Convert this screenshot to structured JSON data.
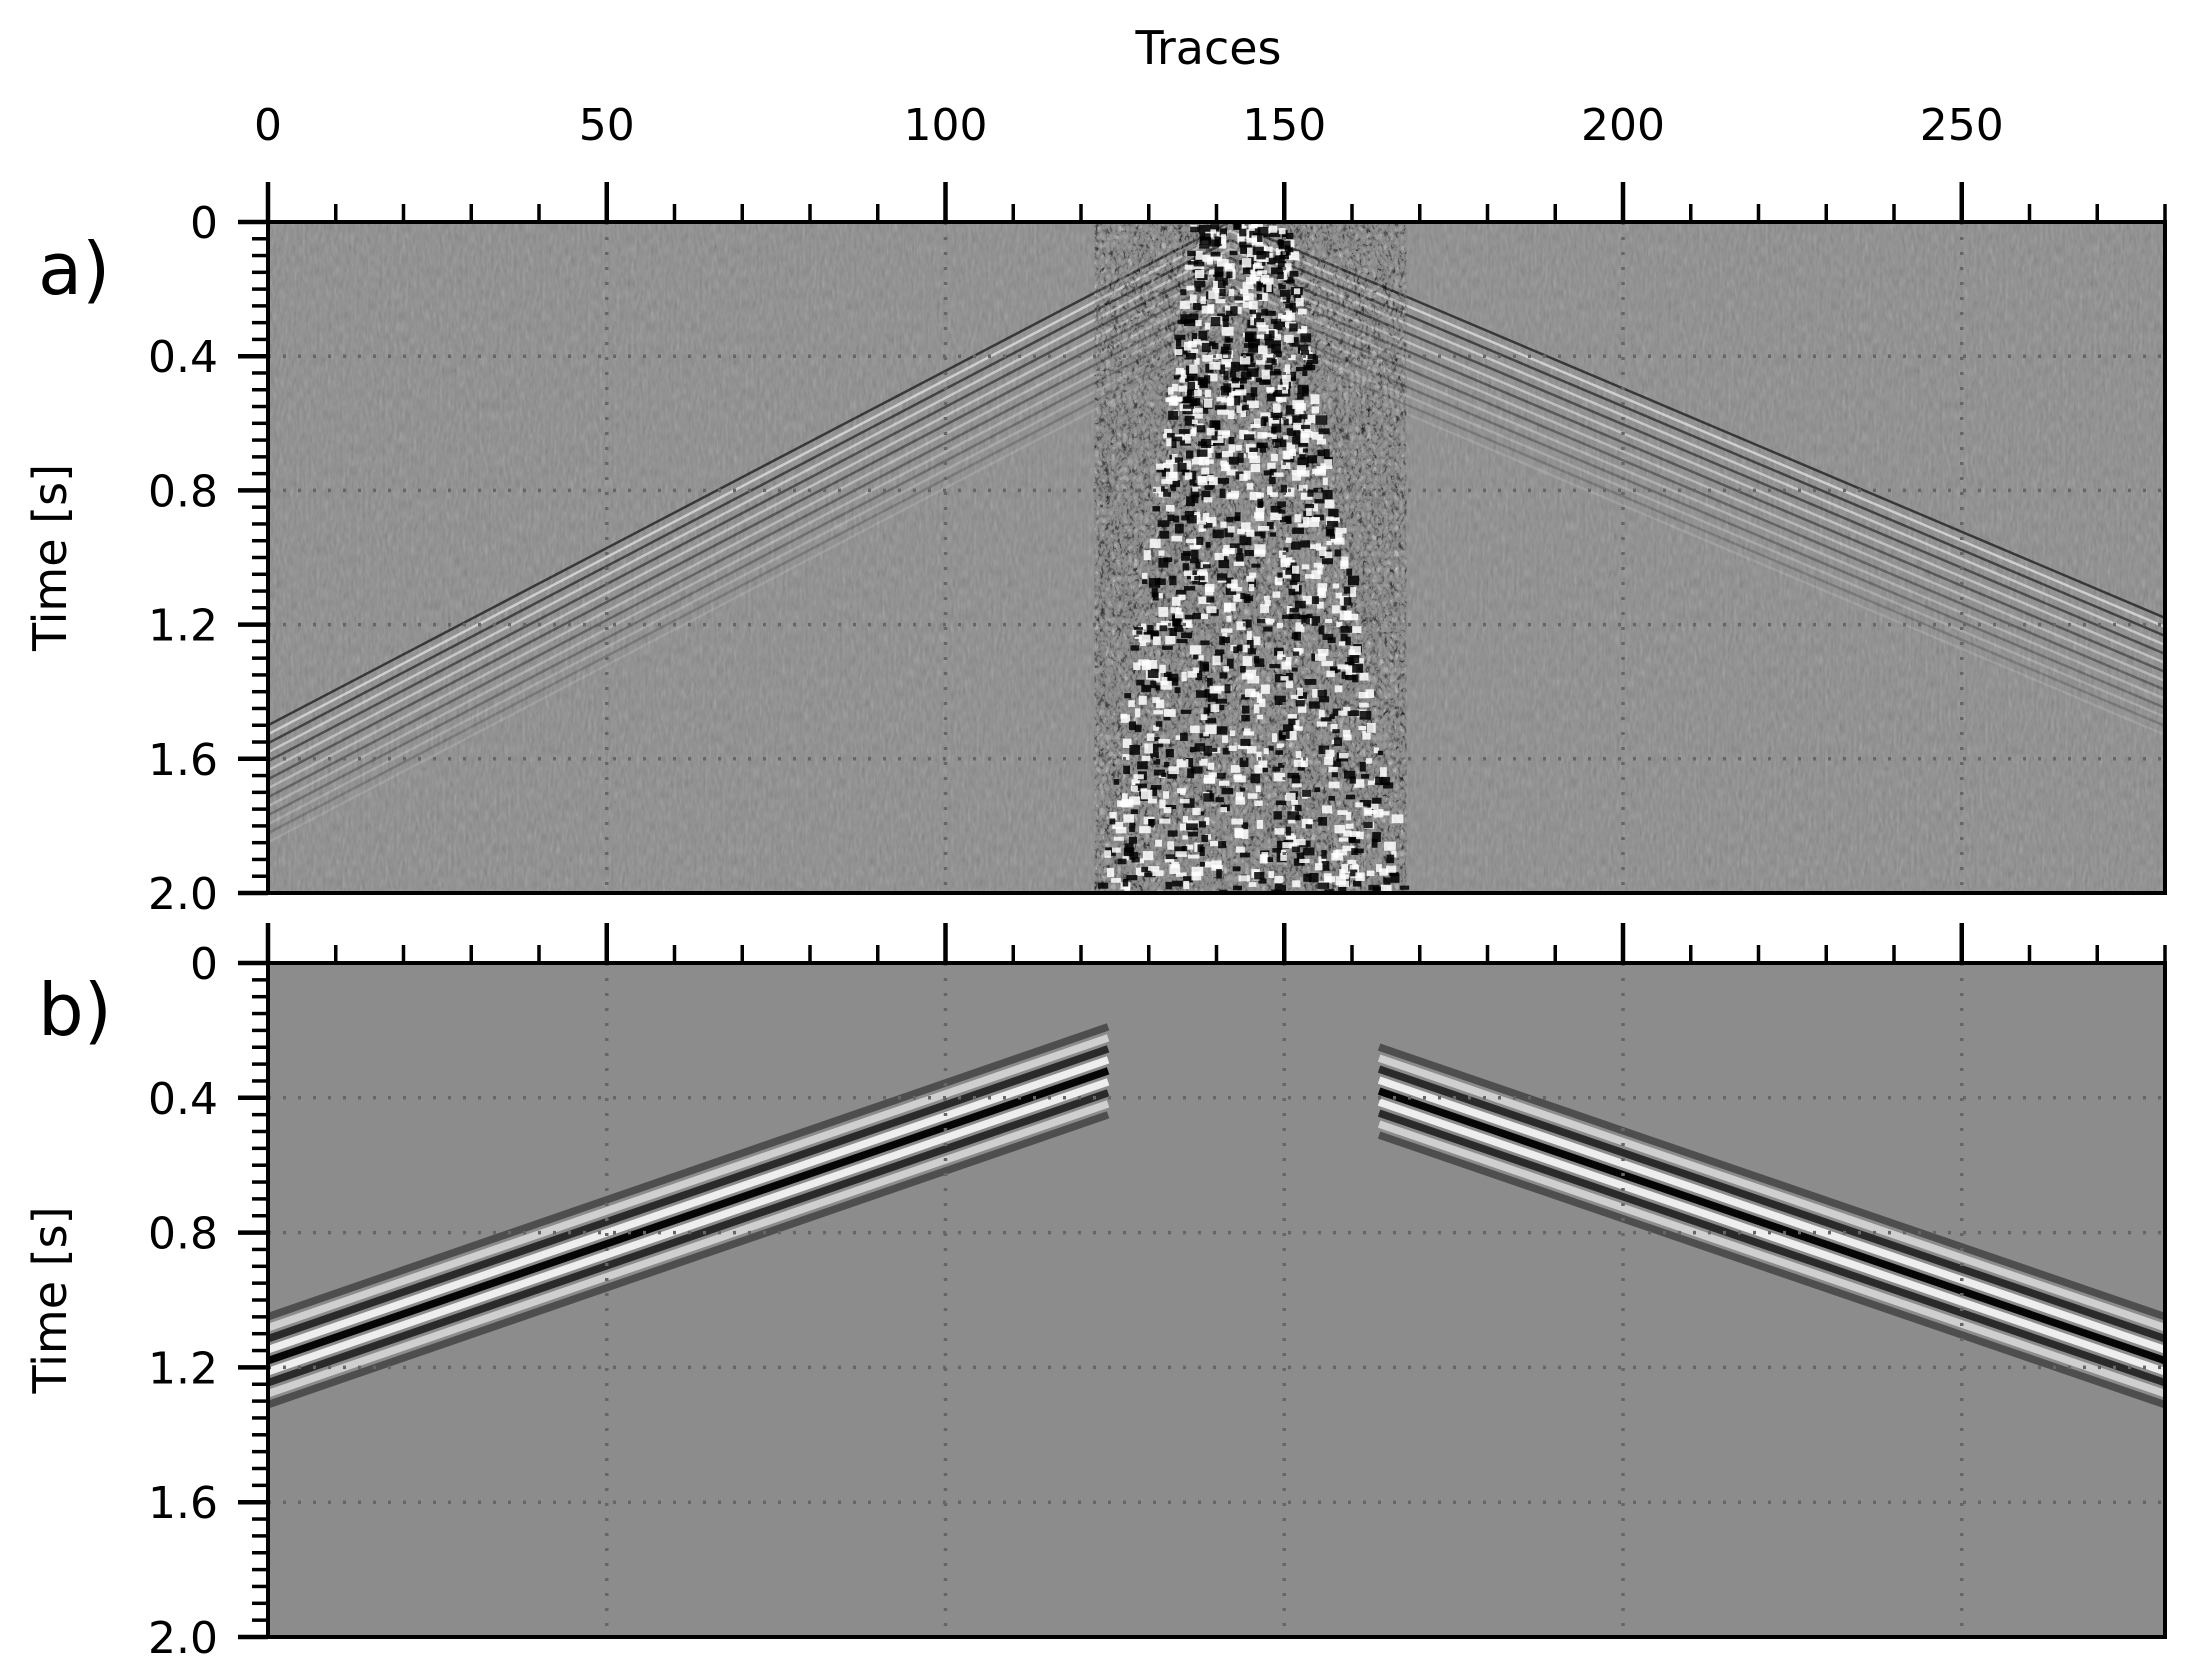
{
  "chart_data": [
    {
      "type": "heatmap",
      "panel_label": "a)",
      "xlabel": "Traces",
      "ylabel": "Time [s]",
      "xlim": [
        0,
        280
      ],
      "ylim": [
        0,
        2.0
      ],
      "y_inverted": true,
      "x_tick_positions": "top",
      "xticks": [
        0,
        50,
        100,
        150,
        200,
        250
      ],
      "xtick_labels": [
        "0",
        "50",
        "100",
        "150",
        "200",
        "250"
      ],
      "yticks": [
        0,
        0.4,
        0.8,
        1.2,
        1.6,
        2.0
      ],
      "ytick_labels": [
        "0",
        "0.4",
        "0.8",
        "1.2",
        "1.6",
        "2.0"
      ],
      "grid": true,
      "colormap": "gray",
      "background_color": "#8c8c8c",
      "features": {
        "first_break_apex": {
          "trace": 142,
          "time": 0.0
        },
        "first_break_left_end": {
          "trace": 0,
          "time": 1.5
        },
        "first_break_right_end": {
          "trace": 280,
          "time": 1.18
        },
        "noise_cone_top": [
          [
            136,
            0.0
          ],
          [
            150,
            0.0
          ]
        ],
        "noise_cone_bottom": [
          [
            122,
            2.0
          ],
          [
            168,
            2.0
          ]
        ]
      }
    },
    {
      "type": "heatmap",
      "panel_label": "b)",
      "xlabel": "",
      "ylabel": "Time [s]",
      "xlim": [
        0,
        280
      ],
      "ylim": [
        0,
        2.0
      ],
      "y_inverted": true,
      "xticks": [
        0,
        50,
        100,
        150,
        200,
        250
      ],
      "yticks": [
        0,
        0.4,
        0.8,
        1.2,
        1.6,
        2.0
      ],
      "ytick_labels": [
        "0",
        "0.4",
        "0.8",
        "1.2",
        "1.6",
        "2.0"
      ],
      "grid": true,
      "colormap": "gray",
      "background_color": "#8c8c8c",
      "features": {
        "left_event": {
          "trace_start": 0,
          "trace_end": 124,
          "time_center_start": 1.18,
          "time_center_end": 0.32
        },
        "right_event": {
          "trace_start": 164,
          "trace_end": 280,
          "time_center_start": 0.38,
          "time_center_end": 1.18
        },
        "muted_gap": [
          124,
          164
        ]
      }
    }
  ]
}
